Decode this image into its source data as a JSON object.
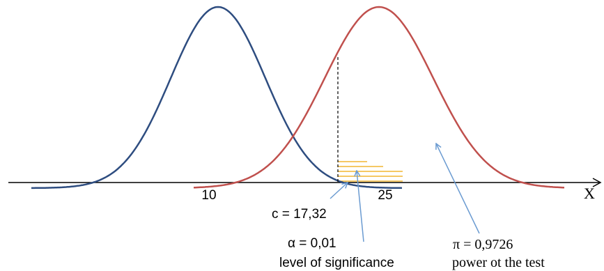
{
  "axis": {
    "label": "X",
    "tick_labels": [
      "10",
      "25"
    ]
  },
  "annotations": {
    "critical_value": "c = 17,32",
    "alpha_value": "α = 0,01",
    "alpha_caption": "level of significance",
    "power_value": "π = 0,9726",
    "power_caption": "power ot the test"
  },
  "distributions": {
    "null_mean": 10,
    "alt_mean": 25,
    "null_color": "#2e4d80",
    "alt_color": "#c0504d"
  },
  "colors": {
    "axis": "#000000",
    "shading": "#f2b632",
    "arrow": "#6b9bd1",
    "critical_line": "#000000"
  }
}
